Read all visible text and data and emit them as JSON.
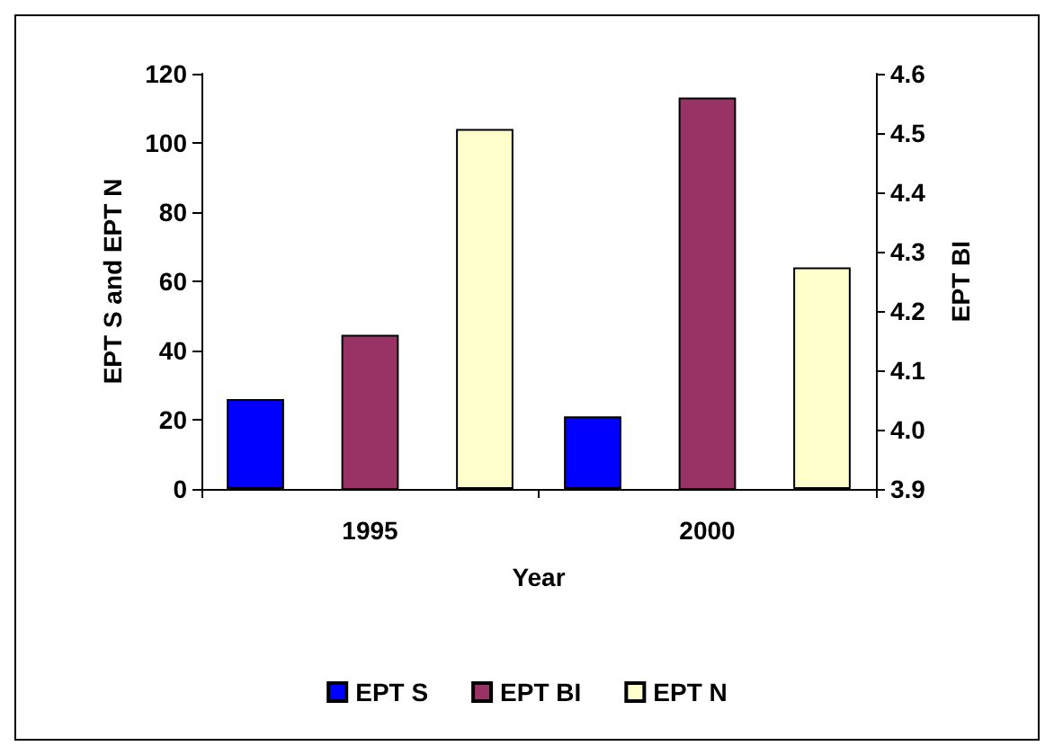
{
  "chart_data": {
    "type": "bar",
    "xlabel": "Year",
    "ylabel": "EPT S and EPT N",
    "y2label": "EPT BI",
    "categories": [
      "1995",
      "2000"
    ],
    "series": [
      {
        "name": "EPT S",
        "color": "#0000ff",
        "values": [
          26,
          21
        ]
      },
      {
        "name": "EPT BI",
        "color": "#993366",
        "values": [
          4.16,
          4.56
        ],
        "axis": "y2"
      },
      {
        "name": "EPT N",
        "color": "#ffffcc",
        "values": [
          104,
          64
        ]
      }
    ],
    "ylim": [
      0,
      120
    ],
    "yticks": [
      0,
      20,
      40,
      60,
      80,
      100,
      120
    ],
    "y2lim": [
      3.9,
      4.6
    ],
    "y2ticks": [
      3.9,
      {
        "value": 4.0,
        "label": "4.0"
      },
      4.1,
      4.2,
      4.3,
      4.4,
      4.5,
      4.6
    ],
    "grid": false,
    "legend": "bottom"
  }
}
